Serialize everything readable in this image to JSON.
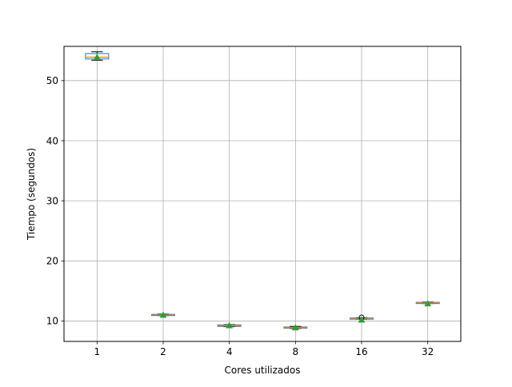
{
  "chart_data": {
    "type": "box",
    "title": "",
    "xlabel": "Cores utilizados",
    "ylabel": "Tiempo (segundos)",
    "categories": [
      "1",
      "2",
      "4",
      "8",
      "16",
      "32"
    ],
    "ylim": [
      6.6,
      55.7
    ],
    "yticks": [
      10,
      20,
      30,
      40,
      50
    ],
    "grid": true,
    "boxes": [
      {
        "category": "1",
        "whislo": 53.4,
        "q1": 53.6,
        "med": 53.9,
        "q3": 54.5,
        "whishi": 54.8,
        "mean": 53.9,
        "fliers": []
      },
      {
        "category": "2",
        "whislo": 10.9,
        "q1": 10.95,
        "med": 11.0,
        "q3": 11.1,
        "whishi": 11.15,
        "mean": 11.0,
        "fliers": []
      },
      {
        "category": "4",
        "whislo": 9.05,
        "q1": 9.1,
        "med": 9.2,
        "q3": 9.35,
        "whishi": 9.4,
        "mean": 9.25,
        "fliers": []
      },
      {
        "category": "8",
        "whislo": 8.75,
        "q1": 8.8,
        "med": 8.9,
        "q3": 9.0,
        "whishi": 9.1,
        "mean": 8.9,
        "fliers": []
      },
      {
        "category": "16",
        "whislo": 10.3,
        "q1": 10.35,
        "med": 10.4,
        "q3": 10.5,
        "whishi": 10.55,
        "mean": 10.2,
        "fliers": [
          10.6
        ]
      },
      {
        "category": "32",
        "whislo": 12.9,
        "q1": 12.95,
        "med": 13.0,
        "q3": 13.1,
        "whishi": 13.15,
        "mean": 12.9,
        "fliers": []
      }
    ],
    "colors": {
      "box": "#1f77b4",
      "median": "#ff7f0e",
      "mean": "#2ca02c",
      "whisker": "#000000",
      "grid": "#b0b0b0"
    }
  }
}
